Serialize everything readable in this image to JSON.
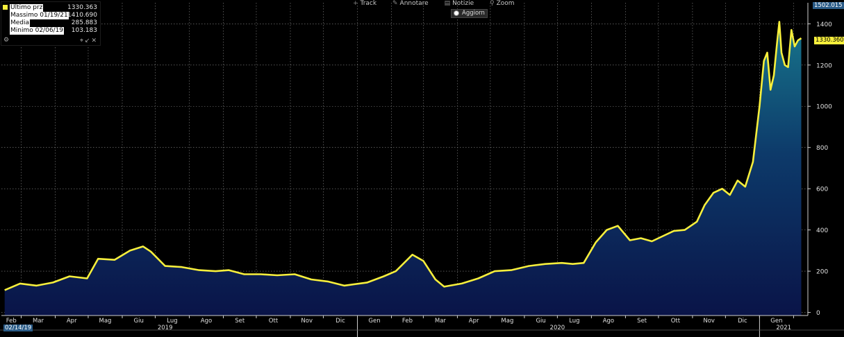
{
  "legend": {
    "items": [
      {
        "label": "Ultimo prz",
        "value": "1330.363"
      },
      {
        "label": "Massimo 01/19/21",
        "value": "1410.690"
      },
      {
        "label": "Media",
        "value": "285.883"
      },
      {
        "label": "Minimo 02/06/19",
        "value": "103.183"
      }
    ],
    "color": "#f7ef3c"
  },
  "toolbar": {
    "track": "Track",
    "annotate": "Annotare",
    "news": "Notizie",
    "zoom": "Zoom",
    "refresh": "Aggiorn"
  },
  "top_value_label": "1502.015",
  "last_value_label": "1330.360",
  "start_date_label": "02/14/19",
  "chart_data": {
    "type": "area",
    "line_color": "#f7ef3c",
    "ylim": [
      -15,
      1502.015
    ],
    "yticks": [
      0,
      200,
      400,
      600,
      800,
      1000,
      1200,
      1400
    ],
    "grid": true,
    "x_month_labels": [
      "Feb",
      "Mar",
      "Apr",
      "Mag",
      "Giu",
      "Lug",
      "Ago",
      "Set",
      "Ott",
      "Nov",
      "Dic",
      "Gen",
      "Feb",
      "Mar",
      "Apr",
      "Mag",
      "Giu",
      "Lug",
      "Ago",
      "Set",
      "Ott",
      "Nov",
      "Dic",
      "Gen"
    ],
    "x_year_labels": [
      "2019",
      "2020",
      "2021"
    ],
    "series": [
      {
        "x": [
          "2019-02-14",
          "2019-02-28",
          "2019-03-15",
          "2019-03-30",
          "2019-04-14",
          "2019-04-30",
          "2019-05-10",
          "2019-05-25",
          "2019-06-08",
          "2019-06-20",
          "2019-06-27",
          "2019-07-10",
          "2019-07-25",
          "2019-08-10",
          "2019-08-25",
          "2019-09-06",
          "2019-09-20",
          "2019-10-05",
          "2019-10-20",
          "2019-11-05",
          "2019-11-20",
          "2019-12-05",
          "2019-12-20",
          "2020-01-10",
          "2020-01-25",
          "2020-02-05",
          "2020-02-20",
          "2020-03-01",
          "2020-03-12",
          "2020-03-20",
          "2020-04-05",
          "2020-04-20",
          "2020-05-05",
          "2020-05-20",
          "2020-06-05",
          "2020-06-20",
          "2020-07-05",
          "2020-07-15",
          "2020-07-25",
          "2020-08-05",
          "2020-08-15",
          "2020-08-25",
          "2020-09-05",
          "2020-09-15",
          "2020-09-25",
          "2020-10-05",
          "2020-10-15",
          "2020-10-25",
          "2020-11-05",
          "2020-11-12",
          "2020-11-20",
          "2020-11-28",
          "2020-12-05",
          "2020-12-12",
          "2020-12-19",
          "2020-12-26",
          "2021-01-01",
          "2021-01-05",
          "2021-01-08",
          "2021-01-11",
          "2021-01-14",
          "2021-01-17",
          "2021-01-19",
          "2021-01-21",
          "2021-01-24",
          "2021-01-27",
          "2021-01-30",
          "2021-02-02",
          "2021-02-05",
          "2021-02-08"
        ],
        "y": [
          108,
          140,
          130,
          145,
          175,
          165,
          260,
          255,
          300,
          320,
          295,
          225,
          220,
          205,
          200,
          205,
          185,
          185,
          180,
          185,
          160,
          150,
          130,
          145,
          175,
          200,
          280,
          250,
          160,
          125,
          140,
          165,
          200,
          205,
          225,
          235,
          240,
          235,
          240,
          340,
          400,
          420,
          350,
          360,
          345,
          370,
          395,
          400,
          440,
          520,
          580,
          600,
          570,
          640,
          610,
          730,
          1000,
          1220,
          1260,
          1080,
          1150,
          1310,
          1410,
          1260,
          1200,
          1190,
          1370,
          1290,
          1320,
          1330
        ]
      }
    ]
  }
}
